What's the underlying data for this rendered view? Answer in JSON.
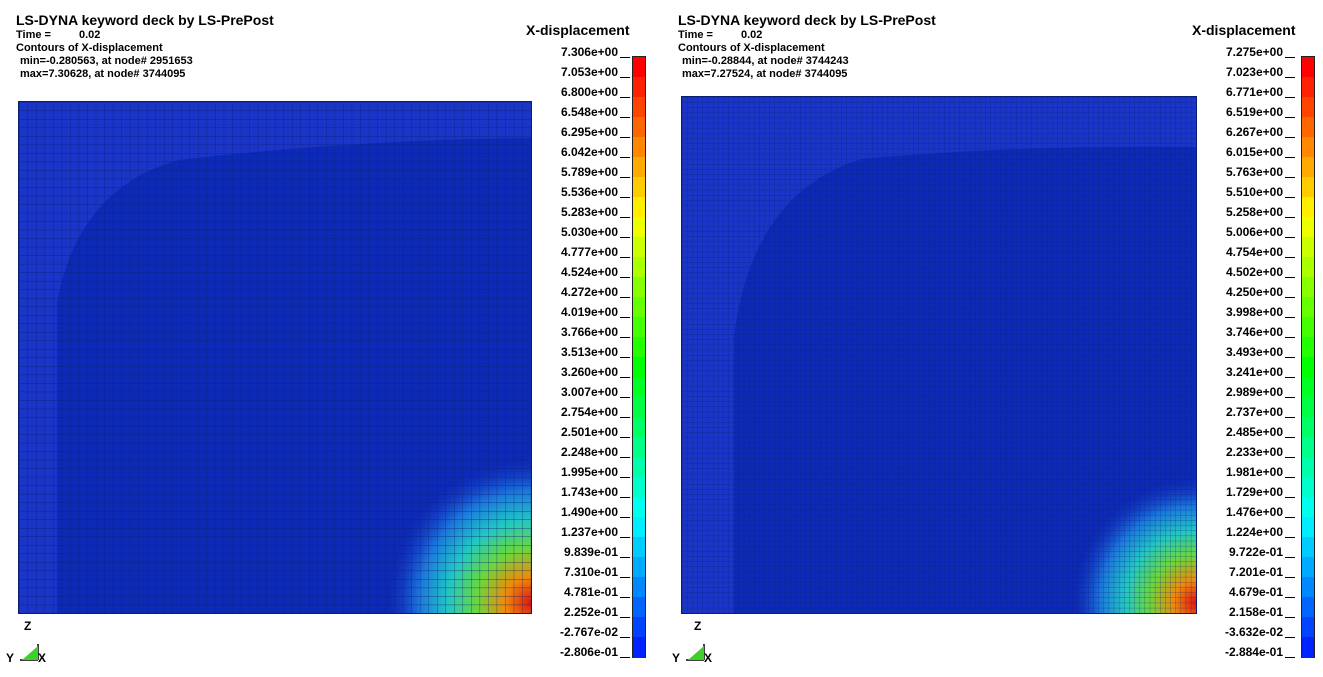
{
  "panels": [
    {
      "title": "LS-DYNA keyword deck by LS-PrePost",
      "time_label": "Time =",
      "time_value": "0.02",
      "contours": "Contours of X-displacement",
      "min_text": "min=-0.280563, at node# 2951653",
      "max_text": "max=7.30628, at node# 3744095",
      "legend_title": "X-displacement",
      "legend_ticks": [
        "7.306e+00",
        "7.053e+00",
        "6.800e+00",
        "6.548e+00",
        "6.295e+00",
        "6.042e+00",
        "5.789e+00",
        "5.536e+00",
        "5.283e+00",
        "5.030e+00",
        "4.777e+00",
        "4.524e+00",
        "4.272e+00",
        "4.019e+00",
        "3.766e+00",
        "3.513e+00",
        "3.260e+00",
        "3.007e+00",
        "2.754e+00",
        "2.501e+00",
        "2.248e+00",
        "1.995e+00",
        "1.743e+00",
        "1.490e+00",
        "1.237e+00",
        "9.839e-01",
        "7.310e-01",
        "4.781e-01",
        "2.252e-01",
        "-2.767e-02",
        "-2.806e-01"
      ],
      "axis": {
        "z": "Z",
        "y": "Y",
        "x": "X"
      }
    },
    {
      "title": "LS-DYNA keyword deck by LS-PrePost",
      "time_label": "Time =",
      "time_value": "0.02",
      "contours": "Contours of X-displacement",
      "min_text": "min=-0.28844, at node# 3744243",
      "max_text": "max=7.27524, at node# 3744095",
      "legend_title": "X-displacement",
      "legend_ticks": [
        "7.275e+00",
        "7.023e+00",
        "6.771e+00",
        "6.519e+00",
        "6.267e+00",
        "6.015e+00",
        "5.763e+00",
        "5.510e+00",
        "5.258e+00",
        "5.006e+00",
        "4.754e+00",
        "4.502e+00",
        "4.250e+00",
        "3.998e+00",
        "3.746e+00",
        "3.493e+00",
        "3.241e+00",
        "2.989e+00",
        "2.737e+00",
        "2.485e+00",
        "2.233e+00",
        "1.981e+00",
        "1.729e+00",
        "1.476e+00",
        "1.224e+00",
        "9.722e-01",
        "7.201e-01",
        "4.679e-01",
        "2.158e-01",
        "-3.632e-02",
        "-2.884e-01"
      ],
      "axis": {
        "z": "Z",
        "y": "Y",
        "x": "X"
      }
    }
  ],
  "colors": {
    "mesh_base": "#1a35c8",
    "mesh_inner": "#0c2ab5",
    "mesh_grid": "#0a1f70",
    "hot_red": "#e3140c",
    "axis_green": "#3fcf2c"
  },
  "legend_palette": [
    "#ff0000",
    "#ff2200",
    "#ff4400",
    "#ff6600",
    "#ff8800",
    "#ffaa00",
    "#ffcc00",
    "#ffee00",
    "#eeff00",
    "#ccff00",
    "#aaff00",
    "#88ff00",
    "#66ff00",
    "#44ff00",
    "#22ff00",
    "#00ff00",
    "#00ff22",
    "#00ff44",
    "#00ff66",
    "#00ff88",
    "#00ffaa",
    "#00ffcc",
    "#00ffee",
    "#00eeff",
    "#00ccff",
    "#00aaff",
    "#0088ff",
    "#0066ff",
    "#0044ff",
    "#0022ff"
  ]
}
